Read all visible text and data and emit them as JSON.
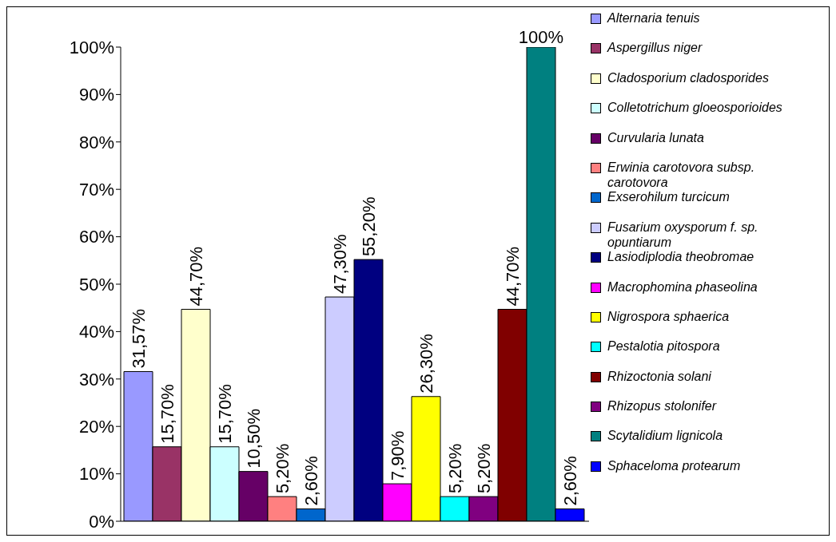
{
  "chart_data": {
    "type": "bar",
    "categories": [
      null
    ],
    "ylim": [
      0,
      100
    ],
    "yticks": [
      {
        "value": 0,
        "label": "0%"
      },
      {
        "value": 10,
        "label": "10%"
      },
      {
        "value": 20,
        "label": "20%"
      },
      {
        "value": 30,
        "label": "30%"
      },
      {
        "value": 40,
        "label": "40%"
      },
      {
        "value": 50,
        "label": "50%"
      },
      {
        "value": 60,
        "label": "60%"
      },
      {
        "value": 70,
        "label": "70%"
      },
      {
        "value": 80,
        "label": "80%"
      },
      {
        "value": 90,
        "label": "90%"
      },
      {
        "value": 100,
        "label": "100%"
      }
    ],
    "legend": "right",
    "series": [
      {
        "name": "Alternaria tenuis",
        "color": "#9999ff",
        "values": [
          31.57
        ],
        "value_labels": [
          "31,57%"
        ]
      },
      {
        "name": "Aspergillus niger",
        "color": "#993366",
        "values": [
          15.7
        ],
        "value_labels": [
          "15,70%"
        ]
      },
      {
        "name": "Cladosporium cladosporides",
        "color": "#ffffcc",
        "values": [
          44.7
        ],
        "value_labels": [
          "44,70%"
        ]
      },
      {
        "name": "Colletotrichum gloeosporioides",
        "color": "#ccffff",
        "values": [
          15.7
        ],
        "value_labels": [
          "15,70%"
        ]
      },
      {
        "name": "Curvularia lunata",
        "color": "#660066",
        "values": [
          10.5
        ],
        "value_labels": [
          "10,50%"
        ]
      },
      {
        "name": "Erwinia carotovora subsp. carotovora",
        "color": "#ff8080",
        "values": [
          5.2
        ],
        "value_labels": [
          "5,20%"
        ]
      },
      {
        "name": "Exserohilum turcicum",
        "color": "#0066cc",
        "values": [
          2.6
        ],
        "value_labels": [
          "2,60%"
        ]
      },
      {
        "name": "Fusarium oxysporum f. sp. opuntiarum",
        "color": "#ccccff",
        "values": [
          47.3
        ],
        "value_labels": [
          "47,30%"
        ]
      },
      {
        "name": "Lasiodiplodia theobromae",
        "color": "#000080",
        "values": [
          55.2
        ],
        "value_labels": [
          "55,20%"
        ]
      },
      {
        "name": "Macrophomina phaseolina",
        "color": "#ff00ff",
        "values": [
          7.9
        ],
        "value_labels": [
          "7,90%"
        ]
      },
      {
        "name": "Nigrospora sphaerica",
        "color": "#ffff00",
        "values": [
          26.3
        ],
        "value_labels": [
          "26,30%"
        ]
      },
      {
        "name": "Pestalotia pitospora",
        "color": "#00ffff",
        "values": [
          5.2
        ],
        "value_labels": [
          "5,20%"
        ]
      },
      {
        "name": "Rhizopus stolonifer",
        "color": "#800080",
        "values": [
          5.2
        ],
        "value_labels": [
          "5,20%"
        ]
      },
      {
        "name": "Rhizoctonia solani",
        "color": "#800000",
        "values": [
          44.7
        ],
        "value_labels": [
          "44,70%"
        ]
      },
      {
        "name": "Scytalidium lignicola",
        "color": "#008080",
        "values": [
          100
        ],
        "value_labels": [
          "100%"
        ]
      },
      {
        "name": "Sphaceloma protearum",
        "color": "#0000ff",
        "values": [
          2.6
        ],
        "value_labels": [
          "2,60%"
        ]
      }
    ]
  }
}
